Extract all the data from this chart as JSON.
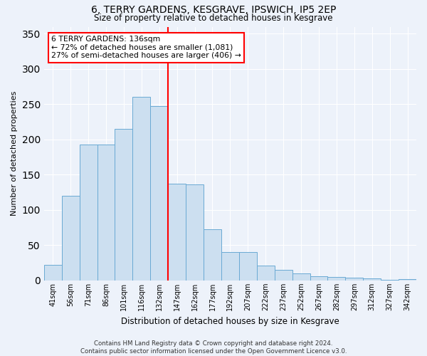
{
  "title_line1": "6, TERRY GARDENS, KESGRAVE, IPSWICH, IP5 2EP",
  "title_line2": "Size of property relative to detached houses in Kesgrave",
  "xlabel": "Distribution of detached houses by size in Kesgrave",
  "ylabel": "Number of detached properties",
  "categories": [
    "41sqm",
    "56sqm",
    "71sqm",
    "86sqm",
    "101sqm",
    "116sqm",
    "132sqm",
    "147sqm",
    "162sqm",
    "177sqm",
    "192sqm",
    "207sqm",
    "222sqm",
    "237sqm",
    "252sqm",
    "267sqm",
    "282sqm",
    "297sqm",
    "312sqm",
    "327sqm",
    "342sqm"
  ],
  "values": [
    22,
    120,
    193,
    193,
    215,
    260,
    247,
    137,
    136,
    73,
    40,
    40,
    21,
    15,
    10,
    6,
    5,
    4,
    3,
    1,
    2
  ],
  "bar_color": "#ccdff0",
  "bar_edge_color": "#6aaad4",
  "red_line_x": 6.5,
  "ylim": [
    0,
    360
  ],
  "yticks": [
    0,
    50,
    100,
    150,
    200,
    250,
    300,
    350
  ],
  "annotation_text": "6 TERRY GARDENS: 136sqm\n← 72% of detached houses are smaller (1,081)\n27% of semi-detached houses are larger (406) →",
  "footer_text": "Contains HM Land Registry data © Crown copyright and database right 2024.\nContains public sector information licensed under the Open Government Licence v3.0.",
  "bg_color": "#edf2fa",
  "plot_bg_color": "#edf2fa",
  "grid_color": "#ffffff",
  "bar_width": 1.0
}
